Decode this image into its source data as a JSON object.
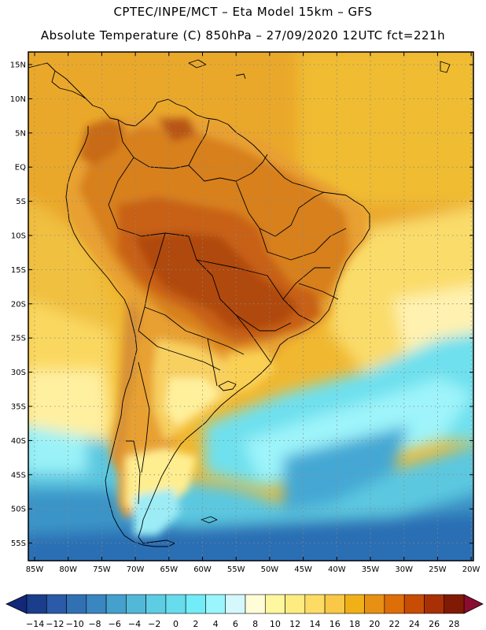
{
  "header": {
    "line1": "CPTEC/INPE/MCT –  Eta Model 15km – GFS",
    "line2": "Absolute Temperature (C) 850hPa – 27/09/2020 12UTC fct=221h"
  },
  "map": {
    "lat_labels": [
      "15N",
      "10N",
      "5N",
      "EQ",
      "5S",
      "10S",
      "15S",
      "20S",
      "25S",
      "30S",
      "35S",
      "40S",
      "45S",
      "50S",
      "55S"
    ],
    "lon_labels": [
      "85W",
      "80W",
      "75W",
      "70W",
      "65W",
      "60W",
      "55W",
      "50W",
      "45W",
      "40W",
      "35W",
      "30W",
      "25W",
      "20W"
    ],
    "grid": "dotted"
  },
  "colorbar": {
    "labels": [
      "-14",
      "-12",
      "-10",
      "-8",
      "-6",
      "-4",
      "-2",
      "0",
      "2",
      "4",
      "6",
      "8",
      "10",
      "12",
      "14",
      "16",
      "18",
      "20",
      "22",
      "24",
      "26",
      "28"
    ],
    "colors": [
      "#1a3d8c",
      "#2a5aa8",
      "#3270b4",
      "#3a86c0",
      "#44a0cc",
      "#52b8d8",
      "#5ccde2",
      "#66dcec",
      "#72ecf6",
      "#9af6fc",
      "#d4f8fc",
      "#fffcd8",
      "#fff6a0",
      "#ffec80",
      "#fcdc64",
      "#f8c846",
      "#f0b018",
      "#e89014",
      "#de6e08",
      "#c84c04",
      "#a83004",
      "#801a04"
    ],
    "end_colors": {
      "low": "#14287a",
      "high": "#8c0c30"
    }
  }
}
